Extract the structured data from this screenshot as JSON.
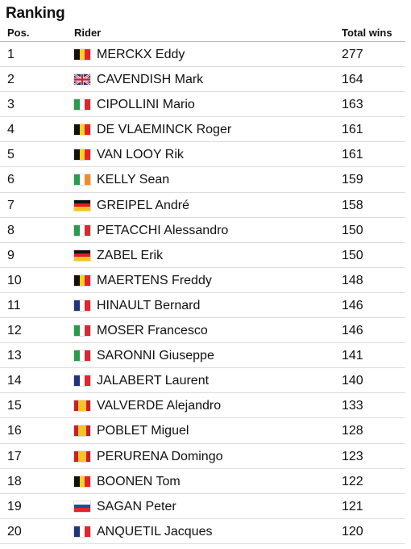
{
  "title": "Ranking",
  "columns": {
    "pos": "Pos.",
    "rider": "Rider",
    "wins": "Total wins"
  },
  "flags": {
    "BE": {
      "dir": "v",
      "colors": [
        "#111111",
        "#f7d21f",
        "#e8202a"
      ]
    },
    "GB": {
      "dir": "uk",
      "colors": [
        "#22337a",
        "#ffffff",
        "#d0202e"
      ]
    },
    "IT": {
      "dir": "v",
      "colors": [
        "#2a9a4b",
        "#ffffff",
        "#d42a30"
      ]
    },
    "IE": {
      "dir": "v",
      "colors": [
        "#2c9b4c",
        "#ffffff",
        "#f28b2c"
      ]
    },
    "DE": {
      "dir": "h",
      "colors": [
        "#111111",
        "#dd1f26",
        "#f7c41c"
      ]
    },
    "FR": {
      "dir": "v",
      "colors": [
        "#22337a",
        "#ffffff",
        "#e2252f"
      ]
    },
    "ES": {
      "dir": "es",
      "colors": [
        "#c8202a",
        "#f6c32a",
        "#c8202a"
      ]
    },
    "SK": {
      "dir": "h",
      "colors": [
        "#ffffff",
        "#1d4aa0",
        "#e0252c"
      ]
    }
  },
  "rows": [
    {
      "pos": "1",
      "flag": "BE",
      "flag_icon": "belgium-flag-icon",
      "rider": "MERCKX Eddy",
      "wins": "277"
    },
    {
      "pos": "2",
      "flag": "GB",
      "flag_icon": "united-kingdom-flag-icon",
      "rider": "CAVENDISH Mark",
      "wins": "164"
    },
    {
      "pos": "3",
      "flag": "IT",
      "flag_icon": "italy-flag-icon",
      "rider": "CIPOLLINI Mario",
      "wins": "163"
    },
    {
      "pos": "4",
      "flag": "BE",
      "flag_icon": "belgium-flag-icon",
      "rider": "DE VLAEMINCK Roger",
      "wins": "161"
    },
    {
      "pos": "5",
      "flag": "BE",
      "flag_icon": "belgium-flag-icon",
      "rider": "VAN LOOY Rik",
      "wins": "161"
    },
    {
      "pos": "6",
      "flag": "IE",
      "flag_icon": "ireland-flag-icon",
      "rider": "KELLY Sean",
      "wins": "159"
    },
    {
      "pos": "7",
      "flag": "DE",
      "flag_icon": "germany-flag-icon",
      "rider": "GREIPEL André",
      "wins": "158"
    },
    {
      "pos": "8",
      "flag": "IT",
      "flag_icon": "italy-flag-icon",
      "rider": "PETACCHI Alessandro",
      "wins": "150"
    },
    {
      "pos": "9",
      "flag": "DE",
      "flag_icon": "germany-flag-icon",
      "rider": "ZABEL Erik",
      "wins": "150"
    },
    {
      "pos": "10",
      "flag": "BE",
      "flag_icon": "belgium-flag-icon",
      "rider": "MAERTENS Freddy",
      "wins": "148"
    },
    {
      "pos": "11",
      "flag": "FR",
      "flag_icon": "france-flag-icon",
      "rider": "HINAULT Bernard",
      "wins": "146"
    },
    {
      "pos": "12",
      "flag": "IT",
      "flag_icon": "italy-flag-icon",
      "rider": "MOSER Francesco",
      "wins": "146"
    },
    {
      "pos": "13",
      "flag": "IT",
      "flag_icon": "italy-flag-icon",
      "rider": "SARONNI Giuseppe",
      "wins": "141"
    },
    {
      "pos": "14",
      "flag": "FR",
      "flag_icon": "france-flag-icon",
      "rider": "JALABERT Laurent",
      "wins": "140"
    },
    {
      "pos": "15",
      "flag": "ES",
      "flag_icon": "spain-flag-icon",
      "rider": "VALVERDE Alejandro",
      "wins": "133"
    },
    {
      "pos": "16",
      "flag": "ES",
      "flag_icon": "spain-flag-icon",
      "rider": "POBLET Miguel",
      "wins": "128"
    },
    {
      "pos": "17",
      "flag": "ES",
      "flag_icon": "spain-flag-icon",
      "rider": "PERURENA Domingo",
      "wins": "123"
    },
    {
      "pos": "18",
      "flag": "BE",
      "flag_icon": "belgium-flag-icon",
      "rider": "BOONEN Tom",
      "wins": "122"
    },
    {
      "pos": "19",
      "flag": "SK",
      "flag_icon": "slovakia-flag-icon",
      "rider": "SAGAN Peter",
      "wins": "121"
    },
    {
      "pos": "20",
      "flag": "FR",
      "flag_icon": "france-flag-icon",
      "rider": "ANQUETIL Jacques",
      "wins": "120"
    }
  ]
}
